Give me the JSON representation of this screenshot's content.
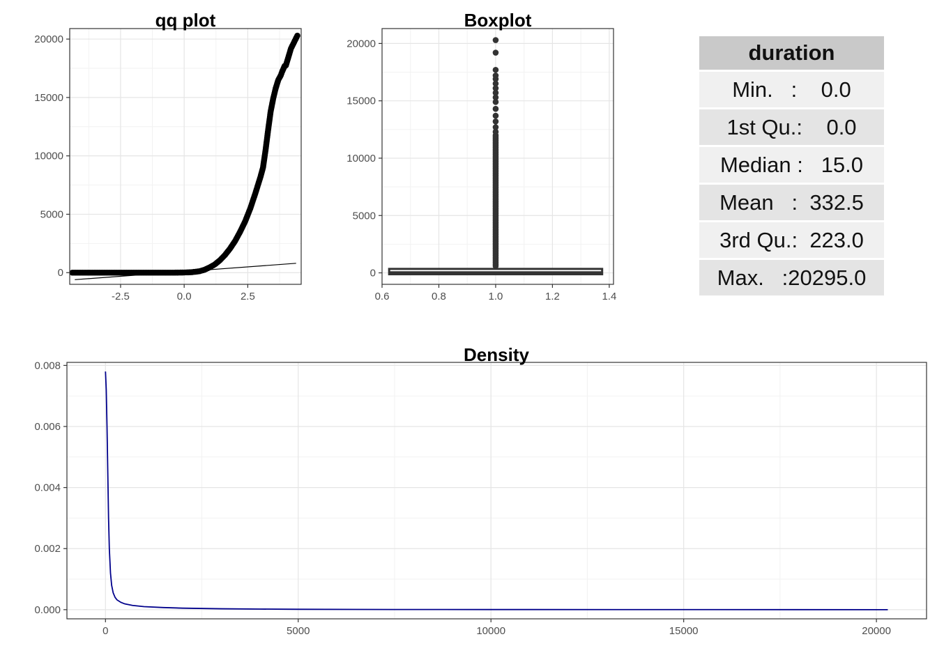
{
  "chart_data": [
    {
      "type": "scatter",
      "title": "qq plot",
      "xlabel": "",
      "ylabel": "",
      "xlim": [
        -4.5,
        4.6
      ],
      "ylim": [
        -1000,
        20900
      ],
      "x_ticks": [
        -2.5,
        0.0,
        2.5
      ],
      "x_tick_labels": [
        "-2.5",
        "0.0",
        "2.5"
      ],
      "y_ticks": [
        0,
        5000,
        10000,
        15000,
        20000
      ],
      "y_tick_labels": [
        "0",
        "5000",
        "10000",
        "15000",
        "20000"
      ],
      "grid": true,
      "reference_line": {
        "x": [
          -4.3,
          4.4
        ],
        "y": [
          -600,
          800
        ]
      },
      "points": [
        [
          -4.4,
          0
        ],
        [
          -4.0,
          0
        ],
        [
          -3.6,
          0
        ],
        [
          -3.2,
          0
        ],
        [
          -2.8,
          0
        ],
        [
          -2.4,
          0
        ],
        [
          -2.0,
          0
        ],
        [
          -1.6,
          0
        ],
        [
          -1.2,
          0
        ],
        [
          -0.8,
          0
        ],
        [
          -0.4,
          0
        ],
        [
          0.0,
          15
        ],
        [
          0.3,
          40
        ],
        [
          0.6,
          120
        ],
        [
          0.8,
          250
        ],
        [
          1.0,
          450
        ],
        [
          1.2,
          700
        ],
        [
          1.4,
          1050
        ],
        [
          1.6,
          1500
        ],
        [
          1.8,
          2050
        ],
        [
          2.0,
          2700
        ],
        [
          2.2,
          3500
        ],
        [
          2.4,
          4400
        ],
        [
          2.6,
          5500
        ],
        [
          2.8,
          6800
        ],
        [
          3.0,
          8200
        ],
        [
          3.1,
          9000
        ],
        [
          3.2,
          10500
        ],
        [
          3.3,
          12200
        ],
        [
          3.4,
          13800
        ],
        [
          3.5,
          14900
        ],
        [
          3.6,
          15800
        ],
        [
          3.7,
          16500
        ],
        [
          3.8,
          16900
        ],
        [
          3.85,
          17200
        ],
        [
          3.95,
          17700
        ],
        [
          4.0,
          17750
        ],
        [
          4.2,
          19200
        ],
        [
          4.45,
          20295
        ]
      ]
    },
    {
      "type": "box",
      "title": "Boxplot",
      "xlabel": "",
      "ylabel": "",
      "xlim": [
        0.6,
        1.415
      ],
      "ylim": [
        -1000,
        21300
      ],
      "x_ticks": [
        0.6,
        0.8,
        1.0,
        1.2,
        1.4
      ],
      "x_tick_labels": [
        "0.6",
        "0.8",
        "1.0",
        "1.2",
        "1.4"
      ],
      "y_ticks": [
        0,
        5000,
        10000,
        15000,
        20000
      ],
      "y_tick_labels": [
        "0",
        "5000",
        "10000",
        "15000",
        "20000"
      ],
      "grid": true,
      "box": {
        "x": 1.0,
        "width": 0.75,
        "q1": 0.0,
        "median": 15.0,
        "q3": 223.0,
        "whisker_low": 0.0,
        "whisker_high": 557.5
      },
      "outlier_range": [
        600,
        12000
      ],
      "outliers": [
        20295,
        19200,
        17700,
        17200,
        16900,
        16500,
        16100,
        15700,
        15300,
        14900,
        14300,
        13700,
        13200,
        12700,
        12300
      ]
    },
    {
      "type": "line",
      "title": "Density",
      "xlabel": "",
      "ylabel": "",
      "xlim": [
        -1000,
        21300
      ],
      "ylim": [
        -0.0003,
        0.0081
      ],
      "x_ticks": [
        0,
        5000,
        10000,
        15000,
        20000
      ],
      "x_tick_labels": [
        "0",
        "5000",
        "10000",
        "15000",
        "20000"
      ],
      "y_ticks": [
        0.0,
        0.002,
        0.004,
        0.006,
        0.008
      ],
      "y_tick_labels": [
        "0.000",
        "0.002",
        "0.004",
        "0.006",
        "0.008"
      ],
      "grid": true,
      "color": "#00008b",
      "x": [
        0,
        20,
        40,
        60,
        80,
        100,
        130,
        160,
        200,
        250,
        300,
        400,
        500,
        700,
        1000,
        1500,
        2000,
        3000,
        4000,
        5000,
        7500,
        10000,
        15000,
        20295
      ],
      "y": [
        0.0078,
        0.0072,
        0.006,
        0.0045,
        0.003,
        0.002,
        0.0012,
        0.0008,
        0.00055,
        0.0004,
        0.00032,
        0.00024,
        0.00019,
        0.00014,
        0.0001,
        7e-05,
        5e-05,
        3e-05,
        2e-05,
        1.2e-05,
        6e-06,
        4e-06,
        2e-06,
        0.0
      ]
    }
  ],
  "summary": {
    "header": "duration",
    "rows": [
      "Min.   :    0.0",
      "1st Qu.:    0.0",
      "Median :   15.0",
      "Mean   :  332.5",
      "3rd Qu.:  223.0",
      "Max.   :20295.0"
    ]
  }
}
